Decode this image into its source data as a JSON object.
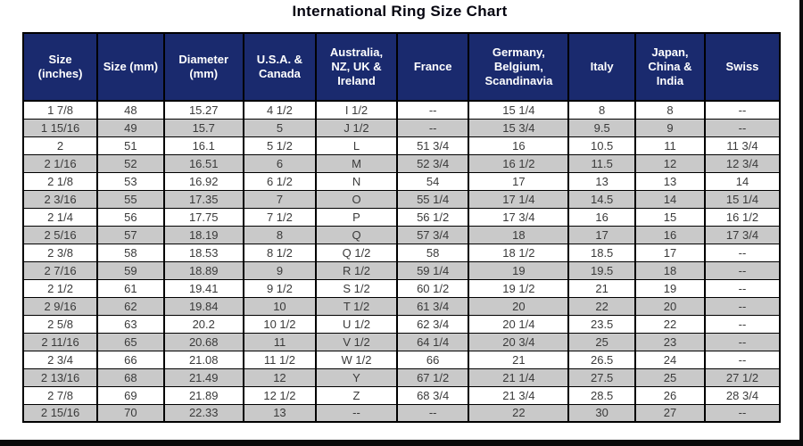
{
  "title": "International Ring Size Chart",
  "colors": {
    "header_bg": "#1a2a6e",
    "header_text": "#ffffff",
    "row_bg": "#ffffff",
    "row_alt_bg": "#c9c9c9",
    "border": "#000000",
    "cell_text": "#3a3a3a"
  },
  "chart_data": {
    "type": "table",
    "title": "International Ring Size Chart",
    "columns": [
      "Size (inches)",
      "Size (mm)",
      "Diameter (mm)",
      "U.S.A. & Canada",
      "Australia, NZ, UK & Ireland",
      "France",
      "Germany, Belgium, Scandinavia",
      "Italy",
      "Japan, China & India",
      "Swiss"
    ],
    "column_widths_pct": [
      9.8,
      8.8,
      10.5,
      9.6,
      10.7,
      9.5,
      13.2,
      8.8,
      9.2,
      9.9
    ],
    "rows": [
      [
        "1 7/8",
        "48",
        "15.27",
        "4 1/2",
        "I 1/2",
        "--",
        "15 1/4",
        "8",
        "8",
        "--"
      ],
      [
        "1 15/16",
        "49",
        "15.7",
        "5",
        "J 1/2",
        "--",
        "15 3/4",
        "9.5",
        "9",
        "--"
      ],
      [
        "2",
        "51",
        "16.1",
        "5 1/2",
        "L",
        "51 3/4",
        "16",
        "10.5",
        "11",
        "11 3/4"
      ],
      [
        "2 1/16",
        "52",
        "16.51",
        "6",
        "M",
        "52 3/4",
        "16 1/2",
        "11.5",
        "12",
        "12 3/4"
      ],
      [
        "2 1/8",
        "53",
        "16.92",
        "6 1/2",
        "N",
        "54",
        "17",
        "13",
        "13",
        "14"
      ],
      [
        "2 3/16",
        "55",
        "17.35",
        "7",
        "O",
        "55 1/4",
        "17 1/4",
        "14.5",
        "14",
        "15 1/4"
      ],
      [
        "2 1/4",
        "56",
        "17.75",
        "7 1/2",
        "P",
        "56 1/2",
        "17 3/4",
        "16",
        "15",
        "16 1/2"
      ],
      [
        "2 5/16",
        "57",
        "18.19",
        "8",
        "Q",
        "57 3/4",
        "18",
        "17",
        "16",
        "17 3/4"
      ],
      [
        "2 3/8",
        "58",
        "18.53",
        "8 1/2",
        "Q 1/2",
        "58",
        "18 1/2",
        "18.5",
        "17",
        "--"
      ],
      [
        "2 7/16",
        "59",
        "18.89",
        "9",
        "R 1/2",
        "59 1/4",
        "19",
        "19.5",
        "18",
        "--"
      ],
      [
        "2 1/2",
        "61",
        "19.41",
        "9 1/2",
        "S 1/2",
        "60 1/2",
        "19 1/2",
        "21",
        "19",
        "--"
      ],
      [
        "2 9/16",
        "62",
        "19.84",
        "10",
        "T 1/2",
        "61 3/4",
        "20",
        "22",
        "20",
        "--"
      ],
      [
        "2 5/8",
        "63",
        "20.2",
        "10 1/2",
        "U 1/2",
        "62 3/4",
        "20 1/4",
        "23.5",
        "22",
        "--"
      ],
      [
        "2 11/16",
        "65",
        "20.68",
        "11",
        "V 1/2",
        "64 1/4",
        "20 3/4",
        "25",
        "23",
        "--"
      ],
      [
        "2 3/4",
        "66",
        "21.08",
        "11 1/2",
        "W 1/2",
        "66",
        "21",
        "26.5",
        "24",
        "--"
      ],
      [
        "2 13/16",
        "68",
        "21.49",
        "12",
        "Y",
        "67 1/2",
        "21 1/4",
        "27.5",
        "25",
        "27 1/2"
      ],
      [
        "2 7/8",
        "69",
        "21.89",
        "12 1/2",
        "Z",
        "68 3/4",
        "21 3/4",
        "28.5",
        "26",
        "28 3/4"
      ],
      [
        "2 15/16",
        "70",
        "22.33",
        "13",
        "--",
        "--",
        "22",
        "30",
        "27",
        "--"
      ]
    ]
  }
}
